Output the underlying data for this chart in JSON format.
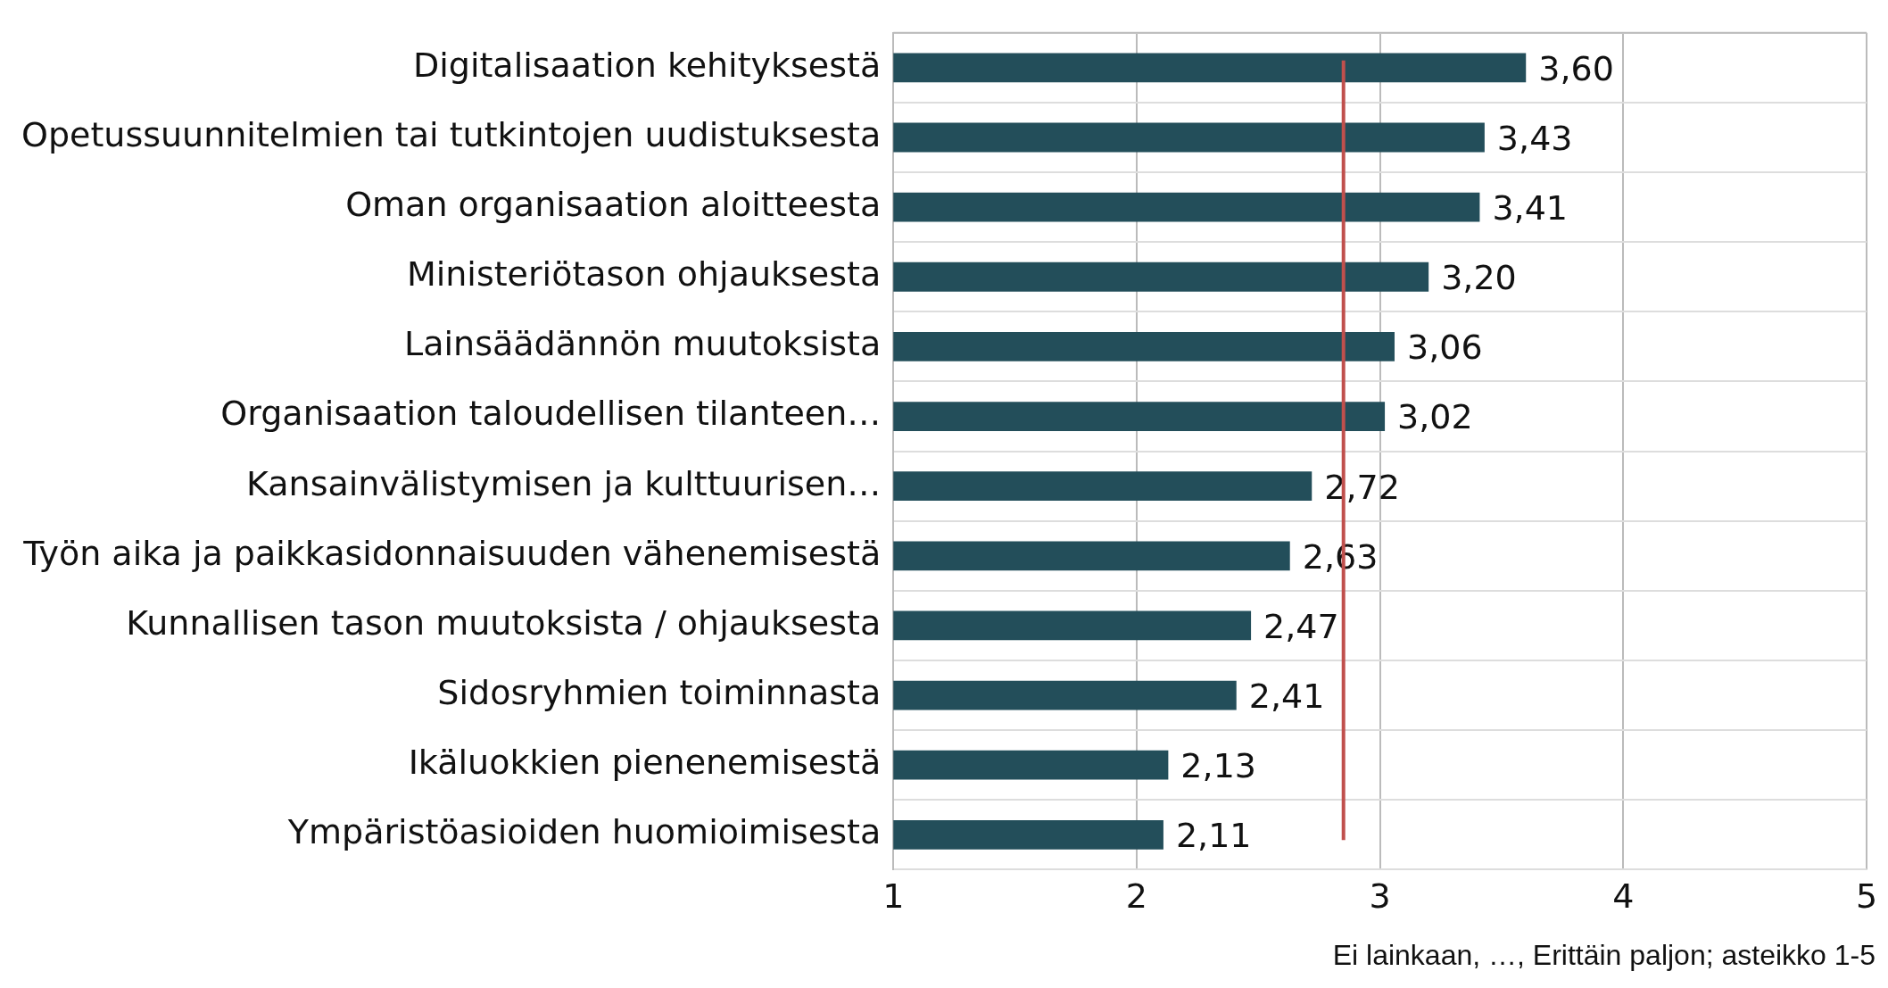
{
  "chart_data": {
    "type": "bar",
    "orientation": "horizontal",
    "categories": [
      "Digitalisaation kehityksestä",
      "Opetussuunnitelmien tai tutkintojen uudistuksesta",
      "Oman organisaation aloitteesta",
      "Ministeriötason ohjauksesta",
      "Lainsäädännön muutoksista",
      "Organisaation taloudellisen tilanteen…",
      "Kansainvälistymisen ja kulttuurisen…",
      "Työn aika ja paikkasidonnaisuuden vähenemisestä",
      "Kunnallisen tason muutoksista / ohjauksesta",
      "Sidosryhmien toiminnasta",
      "Ikäluokkien pienenemisestä",
      "Ympäristöasioiden huomioimisesta"
    ],
    "values": [
      3.6,
      3.43,
      3.41,
      3.2,
      3.06,
      3.02,
      2.72,
      2.63,
      2.47,
      2.41,
      2.13,
      2.11
    ],
    "value_labels": [
      "3,60",
      "3,43",
      "3,41",
      "3,20",
      "3,06",
      "3,02",
      "2,72",
      "2,63",
      "2,47",
      "2,41",
      "2,13",
      "2,11"
    ],
    "color": "#234e5a",
    "xlim": [
      1,
      5
    ],
    "xticks": [
      1,
      2,
      3,
      4,
      5
    ],
    "xlabel": "Ei lainkaan, …, Erittäin paljon; asteikko 1-5",
    "ref_lines": [
      {
        "axis": "x",
        "value": 2.85,
        "color": "#c0504d"
      }
    ],
    "grid": true,
    "legend": false
  }
}
